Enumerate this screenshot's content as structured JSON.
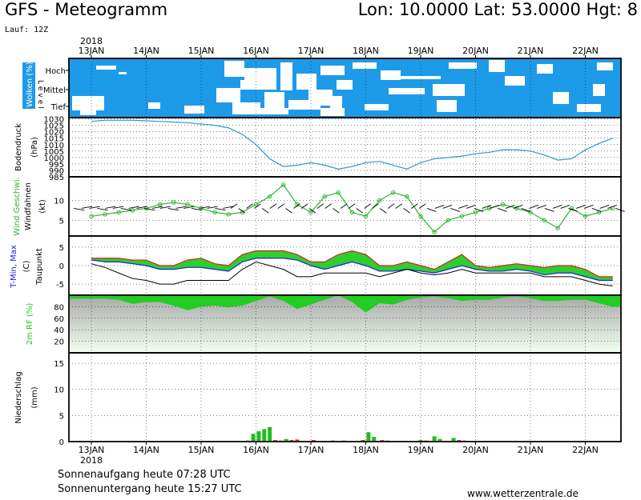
{
  "header": {
    "title": "GFS - Meteogramm",
    "coords": "Lon: 10.0000 Lat: 53.0000 Hgt: 8",
    "run": "Lauf: 12Z"
  },
  "footer": {
    "sunrise": "Sonnenaufgang heute 07:28 UTC",
    "sunset": "Sonnenuntergang heute 15:27 UTC",
    "website": "www.wetterzentrale.de"
  },
  "axis": {
    "year": "2018",
    "days": [
      "13JAN",
      "14JAN",
      "15JAN",
      "16JAN",
      "17JAN",
      "18JAN",
      "19JAN",
      "20JAN",
      "21JAN",
      "22JAN"
    ]
  },
  "colors": {
    "cloud_blue": "#1e9be8",
    "pressure_line": "#2a9ad6",
    "wind_green": "#2db52d",
    "precip_green": "#22bb22",
    "precip_red": "#e03020",
    "tmax_red": "#e02020",
    "tmin_blue": "#2020e0",
    "rh_green": "#22cc22"
  },
  "chart_data": [
    {
      "type": "heatmap",
      "title": "Wolken (%)",
      "ylabel": "Level",
      "levels": [
        "Hoch",
        "Mittel",
        "Tief"
      ],
      "note": "blue = cloud cover, white = clear"
    },
    {
      "type": "line",
      "ylabel": "Bodendruck (hPa)",
      "ticks": [
        985,
        990,
        995,
        1000,
        1005,
        1010,
        1015,
        1020,
        1025,
        1030
      ],
      "ylim": [
        985,
        1031
      ],
      "x": [
        0,
        0.25,
        0.5,
        0.75,
        1,
        1.25,
        1.5,
        1.75,
        2,
        2.25,
        2.5,
        2.75,
        3,
        3.25,
        3.5,
        3.75,
        4,
        4.25,
        4.5,
        4.75,
        5,
        5.25,
        5.5,
        5.75,
        6,
        6.25,
        6.5,
        6.75,
        7,
        7.25,
        7.5,
        7.75,
        8,
        8.25,
        8.5,
        8.75,
        9,
        9.25,
        9.5
      ],
      "values": [
        1028,
        1029,
        1029,
        1029,
        1028.5,
        1028,
        1027.5,
        1027,
        1026,
        1025,
        1023,
        1018,
        1010,
        999,
        993,
        994,
        996,
        994,
        991,
        993,
        996,
        997,
        994,
        991,
        996,
        999,
        1000,
        1001,
        1003,
        1004,
        1006,
        1006,
        1005,
        1002,
        998,
        999,
        1006,
        1011,
        1015
      ]
    },
    {
      "type": "line",
      "ylabel": "Wind Geschwi. (kt)",
      "ylabel2": "Windfahnen",
      "ticks": [
        5,
        10
      ],
      "ylim": [
        1,
        16
      ],
      "x": [
        0,
        0.25,
        0.5,
        0.75,
        1,
        1.25,
        1.5,
        1.75,
        2,
        2.25,
        2.5,
        2.75,
        3,
        3.25,
        3.5,
        3.75,
        4,
        4.25,
        4.5,
        4.75,
        5,
        5.25,
        5.5,
        5.75,
        6,
        6.25,
        6.5,
        6.75,
        7,
        7.25,
        7.5,
        7.75,
        8,
        8.25,
        8.5,
        8.75,
        9,
        9.25,
        9.5
      ],
      "values": [
        6,
        6.5,
        7,
        7.5,
        8,
        9,
        9.5,
        9,
        8,
        7,
        6.5,
        7,
        9,
        11,
        14,
        9,
        7,
        11,
        12,
        7,
        6,
        10,
        12,
        11,
        6,
        2,
        5,
        6,
        7,
        8,
        9,
        8,
        7,
        5,
        3,
        8,
        6,
        7,
        8
      ]
    },
    {
      "type": "line",
      "ylabel": "T-Min, Max (C) / Taupunkt",
      "ticks": [
        -5,
        0,
        5
      ],
      "ylim": [
        -8,
        8
      ],
      "x": [
        0,
        0.25,
        0.5,
        0.75,
        1,
        1.25,
        1.5,
        1.75,
        2,
        2.25,
        2.5,
        2.75,
        3,
        3.25,
        3.5,
        3.75,
        4,
        4.25,
        4.5,
        4.75,
        5,
        5.25,
        5.5,
        5.75,
        6,
        6.25,
        6.5,
        6.75,
        7,
        7.25,
        7.5,
        7.75,
        8,
        8.25,
        8.5,
        8.75,
        9,
        9.25,
        9.5
      ],
      "series": [
        {
          "name": "Max",
          "values": [
            2,
            2,
            2,
            1.5,
            1.5,
            0,
            0,
            1.5,
            2,
            0.5,
            0,
            3,
            4,
            4,
            4,
            3,
            1,
            1,
            3,
            4,
            3,
            0,
            0,
            1,
            0,
            -1,
            1,
            3,
            0,
            -0.5,
            0,
            0.5,
            0,
            -0.5,
            0,
            0,
            -1,
            -3,
            -3
          ]
        },
        {
          "name": "Min",
          "values": [
            1.5,
            1,
            1,
            0.5,
            0,
            -1,
            -1,
            -0.5,
            -0.5,
            -1,
            -1.5,
            1,
            2,
            2,
            2,
            1.5,
            0,
            -1,
            0,
            1,
            0,
            -1.5,
            -1.5,
            -1,
            -1.5,
            -2,
            -1,
            0,
            -1,
            -1.5,
            -1.5,
            -1,
            -1.5,
            -2.5,
            -2,
            -2,
            -3,
            -4,
            -4
          ]
        },
        {
          "name": "Taupunkt",
          "values": [
            0.5,
            -0.5,
            -2,
            -3.5,
            -4,
            -5,
            -5,
            -4,
            -4,
            -4,
            -4,
            -1,
            1,
            0,
            -1,
            -3,
            -3,
            -2,
            -2,
            -2,
            -2,
            -3,
            -2,
            -1,
            -2,
            -2.5,
            -2,
            -1,
            -2,
            -2,
            -2,
            -2,
            -2,
            -3,
            -3,
            -3,
            -4,
            -5,
            -5.5
          ]
        }
      ]
    },
    {
      "type": "area",
      "ylabel": "2m RF (%)",
      "ticks": [
        20,
        40,
        60,
        80
      ],
      "ylim": [
        0,
        100
      ],
      "x": [
        0,
        0.25,
        0.5,
        0.75,
        1,
        1.25,
        1.5,
        1.75,
        2,
        2.25,
        2.5,
        2.75,
        3,
        3.25,
        3.5,
        3.75,
        4,
        4.25,
        4.5,
        4.75,
        5,
        5.25,
        5.5,
        5.75,
        6,
        6.25,
        6.5,
        6.75,
        7,
        7.25,
        7.5,
        7.75,
        8,
        8.25,
        8.5,
        8.75,
        9,
        9.25,
        9.5
      ],
      "values": [
        94,
        94,
        92,
        85,
        88,
        88,
        82,
        74,
        80,
        82,
        79,
        82,
        90,
        98,
        90,
        76,
        84,
        92,
        100,
        88,
        70,
        86,
        84,
        92,
        96,
        98,
        95,
        90,
        92,
        92,
        96,
        98,
        95,
        90,
        90,
        92,
        92,
        86,
        80
      ]
    },
    {
      "type": "bar",
      "ylabel": "Niederschlag (mm)",
      "ticks": [
        0,
        5,
        10,
        15
      ],
      "ylim": [
        0,
        17
      ],
      "x": [
        2.85,
        2.95,
        3.05,
        3.15,
        3.25,
        3.35,
        3.45,
        3.55,
        3.65,
        3.75,
        4.05,
        4.4,
        4.6,
        4.95,
        5.05,
        5.15,
        5.3,
        5.4,
        6.0,
        6.1,
        6.25,
        6.35,
        6.6,
        6.7,
        6.8
      ],
      "values": [
        0.2,
        1.5,
        2.0,
        2.4,
        2.8,
        0.3,
        0.2,
        0.5,
        0.3,
        0.4,
        0.3,
        0.2,
        0.2,
        0.3,
        1.8,
        0.9,
        0.3,
        0.2,
        0.3,
        0.2,
        1.0,
        0.5,
        0.7,
        0.3,
        0.2
      ],
      "colors_series": [
        "green",
        "green",
        "green",
        "green",
        "green",
        "red",
        "red",
        "green",
        "red",
        "red",
        "red",
        "red",
        "red",
        "red",
        "green",
        "green",
        "red",
        "red",
        "green",
        "red",
        "green",
        "green",
        "green",
        "red",
        "red"
      ]
    }
  ]
}
